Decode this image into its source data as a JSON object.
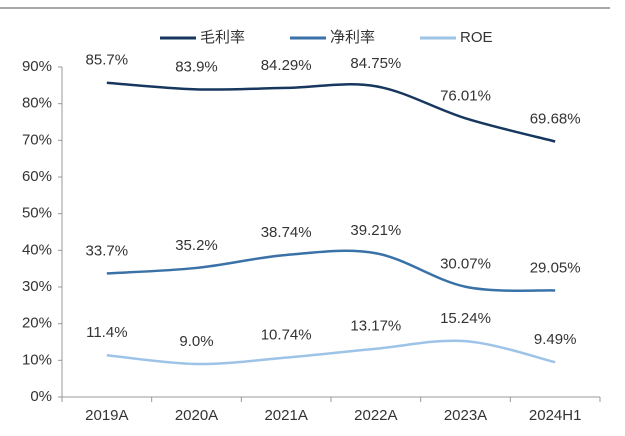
{
  "chart_data": {
    "type": "line",
    "categories": [
      "2019A",
      "2020A",
      "2021A",
      "2022A",
      "2023A",
      "2024H1"
    ],
    "series": [
      {
        "name": "毛利率",
        "color": "#17375e",
        "values": [
          85.7,
          83.9,
          84.29,
          84.75,
          76.01,
          69.68
        ],
        "value_labels": [
          "85.7%",
          "83.9%",
          "84.29%",
          "84.75%",
          "76.01%",
          "69.68%"
        ]
      },
      {
        "name": "净利率",
        "color": "#3a72a8",
        "values": [
          33.7,
          35.2,
          38.74,
          39.21,
          30.07,
          29.05
        ],
        "value_labels": [
          "33.7%",
          "35.2%",
          "38.74%",
          "39.21%",
          "30.07%",
          "29.05%"
        ]
      },
      {
        "name": "ROE",
        "color": "#9dc3e6",
        "values": [
          11.4,
          9.0,
          10.74,
          13.17,
          15.24,
          9.49
        ],
        "value_labels": [
          "11.4%",
          "9.0%",
          "10.74%",
          "13.17%",
          "15.24%",
          "9.49%"
        ]
      }
    ],
    "ylim": [
      0,
      90
    ],
    "yticks": [
      {
        "value": 0,
        "label": "0%"
      },
      {
        "value": 10,
        "label": "10%"
      },
      {
        "value": 20,
        "label": "20%"
      },
      {
        "value": 30,
        "label": "30%"
      },
      {
        "value": 40,
        "label": "40%"
      },
      {
        "value": 50,
        "label": "50%"
      },
      {
        "value": 60,
        "label": "60%"
      },
      {
        "value": 70,
        "label": "70%"
      },
      {
        "value": 80,
        "label": "80%"
      },
      {
        "value": 90,
        "label": "90%"
      }
    ],
    "legend": "top"
  }
}
